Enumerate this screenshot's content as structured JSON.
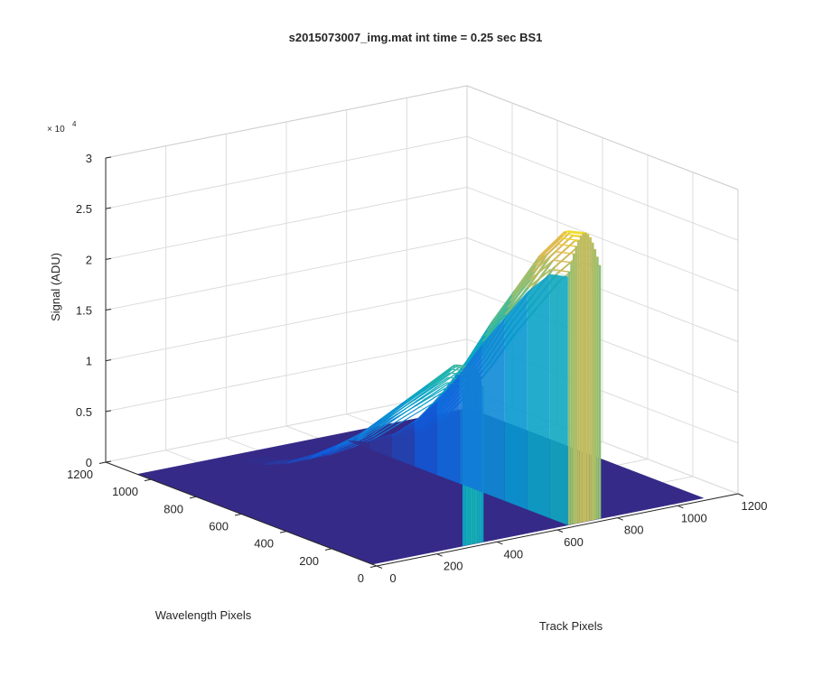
{
  "chart_data": {
    "type": "surface3d",
    "title": "s2015073007_img.mat int time = 0.25 sec   BS1",
    "xlabel": "Track Pixels",
    "ylabel": "Wavelength Pixels",
    "zlabel": "Signal (ADU)",
    "z_exponent_base": "× 10",
    "z_exponent_power": "4",
    "x_ticks": [
      "0",
      "200",
      "400",
      "600",
      "800",
      "1000",
      "1200"
    ],
    "y_ticks": [
      "0",
      "200",
      "400",
      "600",
      "800",
      "1000",
      "1200"
    ],
    "z_ticks": [
      "0",
      "0.5",
      "1",
      "1.5",
      "2",
      "2.5",
      "3"
    ],
    "xlim": [
      0,
      1200
    ],
    "ylim": [
      0,
      1200
    ],
    "zlim": [
      0,
      30000
    ],
    "grid": true,
    "colormap": "parula",
    "floor_color": "#352a87",
    "peak_color": "#f9fb0e",
    "series": [
      {
        "track_range": [
          300,
          370
        ],
        "wavelength": [
          20,
          100,
          200,
          300,
          400,
          500,
          600,
          700,
          800,
          900,
          1000
        ],
        "signal": [
          17500,
          17000,
          14500,
          12000,
          9500,
          7000,
          5000,
          3200,
          1700,
          600,
          0
        ]
      },
      {
        "track_range": [
          650,
          760
        ],
        "wavelength": [
          20,
          100,
          200,
          300,
          400,
          500,
          600,
          700,
          800,
          900,
          1000
        ],
        "signal": [
          28500,
          28000,
          25000,
          21000,
          17000,
          12500,
          8500,
          5000,
          2500,
          800,
          0
        ]
      }
    ]
  }
}
